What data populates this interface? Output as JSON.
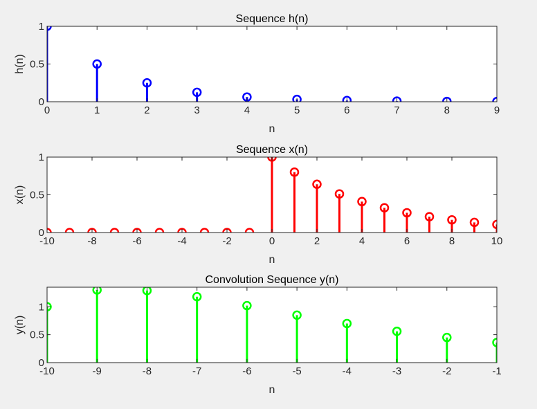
{
  "figure": {
    "background": "#f0f0f0"
  },
  "chart_data": [
    {
      "type": "stem",
      "title": "Sequence h(n)",
      "xlabel": "n",
      "ylabel": "h(n)",
      "color": "#0000ff",
      "xlim": [
        0,
        9
      ],
      "ylim": [
        0,
        1
      ],
      "xticks": [
        0,
        1,
        2,
        3,
        4,
        5,
        6,
        7,
        8,
        9
      ],
      "xticklabels": [
        "0",
        "1",
        "2",
        "3",
        "4",
        "5",
        "6",
        "7",
        "8",
        "9"
      ],
      "yticks": [
        0,
        0.5,
        1
      ],
      "yticklabels": [
        "0",
        "0.5",
        "1"
      ],
      "x": [
        0,
        1,
        2,
        3,
        4,
        5,
        6,
        7,
        8,
        9
      ],
      "values": [
        1,
        0.5,
        0.25,
        0.125,
        0.0625,
        0.03125,
        0.0156,
        0.0078,
        0.0039,
        0.002
      ],
      "grid": false
    },
    {
      "type": "stem",
      "title": "Sequence x(n)",
      "xlabel": "n",
      "ylabel": "x(n)",
      "color": "#ff0000",
      "xlim": [
        -10,
        10
      ],
      "ylim": [
        0,
        1
      ],
      "xticks": [
        -10,
        -8,
        -6,
        -4,
        -2,
        0,
        2,
        4,
        6,
        8,
        10
      ],
      "xticklabels": [
        "-10",
        "-8",
        "-6",
        "-4",
        "-2",
        "0",
        "2",
        "4",
        "6",
        "8",
        "10"
      ],
      "yticks": [
        0,
        0.5,
        1
      ],
      "yticklabels": [
        "0",
        "0.5",
        "1"
      ],
      "x": [
        -10,
        -9,
        -8,
        -7,
        -6,
        -5,
        -4,
        -3,
        -2,
        -1,
        0,
        1,
        2,
        3,
        4,
        5,
        6,
        7,
        8,
        9,
        10
      ],
      "values": [
        0,
        0,
        0,
        0,
        0,
        0,
        0,
        0,
        0,
        0,
        1,
        0.8,
        0.64,
        0.512,
        0.41,
        0.328,
        0.262,
        0.21,
        0.168,
        0.134,
        0.107
      ],
      "grid": false
    },
    {
      "type": "stem",
      "title": "Convolution Sequence y(n)",
      "xlabel": "n",
      "ylabel": "y(n)",
      "color": "#00ff00",
      "xlim": [
        -10,
        -1
      ],
      "ylim": [
        0,
        1.35
      ],
      "xticks": [
        -10,
        -9,
        -8,
        -7,
        -6,
        -5,
        -4,
        -3,
        -2,
        -1
      ],
      "xticklabels": [
        "-10",
        "-9",
        "-8",
        "-7",
        "-6",
        "-5",
        "-4",
        "-3",
        "-2",
        "-1"
      ],
      "yticks": [
        0,
        0.5,
        1
      ],
      "yticklabels": [
        "0",
        "0.5",
        "1"
      ],
      "x": [
        -10,
        -9,
        -8,
        -7,
        -6,
        -5,
        -4,
        -3,
        -2,
        -1
      ],
      "values": [
        1.0,
        1.3,
        1.29,
        1.18,
        1.02,
        0.85,
        0.7,
        0.56,
        0.45,
        0.36
      ],
      "grid": false
    }
  ]
}
